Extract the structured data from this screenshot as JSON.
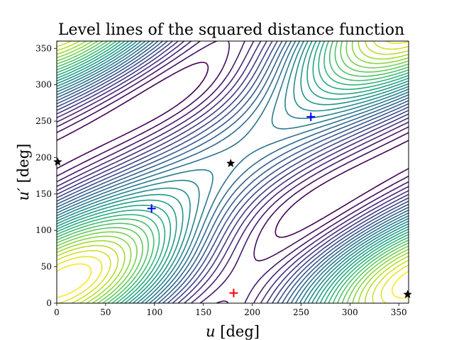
{
  "chart_data": {
    "type": "contour",
    "title": "Level lines of the squared distance function",
    "xlabel": {
      "var": "u",
      "unit": " [deg]"
    },
    "ylabel": {
      "var": "u′",
      "unit": " [deg]"
    },
    "xlim": [
      0,
      360
    ],
    "ylim": [
      0,
      360
    ],
    "xticks": [
      0,
      50,
      100,
      150,
      200,
      250,
      300,
      350
    ],
    "yticks": [
      0,
      50,
      100,
      150,
      200,
      250,
      300,
      350
    ],
    "colormap": "viridis",
    "grid": false,
    "n_levels": 30,
    "markers": [
      {
        "kind": "plus",
        "color": "#0000ff",
        "x": 97,
        "y": 130
      },
      {
        "kind": "plus",
        "color": "#0000ff",
        "x": 260,
        "y": 256
      },
      {
        "kind": "plus",
        "color": "#ff0000",
        "x": 181,
        "y": 14
      },
      {
        "kind": "star",
        "color": "#000000",
        "x": 178,
        "y": 192
      },
      {
        "kind": "star",
        "color": "#000000",
        "x": 1,
        "y": 194
      },
      {
        "kind": "star",
        "color": "#000000",
        "x": 359,
        "y": 12
      }
    ]
  }
}
